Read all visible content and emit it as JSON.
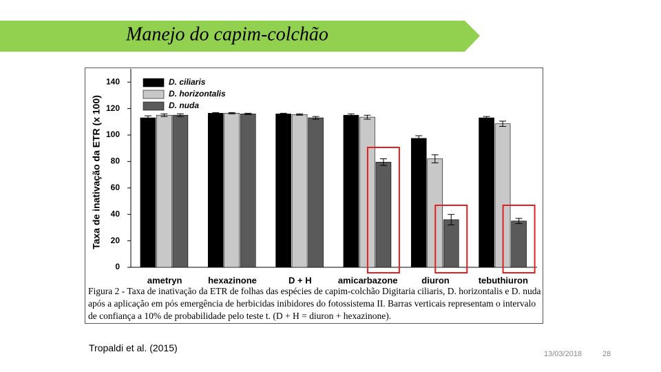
{
  "slide": {
    "title": "Manejo do capim-colchão",
    "citation": "Tropaldi et al. (2015)",
    "date": "13/03/2018",
    "page": "28"
  },
  "chart_data": {
    "type": "bar",
    "y_label": "Taxa de inativação da ETR (x 100)",
    "caption": "Figura 2 - Taxa de inativação da ETR de folhas das espécies de capim-colchão Digitaria ciliaris, D. horizontalis e D. nuda após a aplicação em pós emergência de herbicidas inibidores do fotossistema II. Barras verticais representam o intervalo de confiança a 10% de probabilidade pelo teste t. (D + H = diuron + hexazinone).",
    "categories": [
      "ametryn",
      "hexazinone",
      "D + H",
      "amicarbazone",
      "diuron",
      "tebuthiuron"
    ],
    "series": [
      {
        "name": "D. ciliaris",
        "color": "#000000",
        "values": [
          113,
          116.5,
          116,
          115,
          97.5,
          113
        ],
        "errors": [
          1.5,
          0.5,
          0.5,
          1,
          2,
          1
        ]
      },
      {
        "name": "D. horizontalis",
        "color": "#c8c8c8",
        "values": [
          115,
          116.5,
          115.5,
          113.5,
          82,
          108.5
        ],
        "errors": [
          1,
          0.5,
          0.5,
          1.5,
          3,
          2
        ]
      },
      {
        "name": "D. nuda",
        "color": "#5a5a5a",
        "values": [
          115,
          116,
          113,
          79.5,
          36,
          35
        ],
        "errors": [
          1,
          0.5,
          1,
          2.5,
          4,
          2
        ]
      }
    ],
    "ylim": [
      0,
      150
    ],
    "yticks": [
      0,
      20,
      40,
      60,
      80,
      100,
      120,
      140
    ],
    "legend": "top-left"
  }
}
